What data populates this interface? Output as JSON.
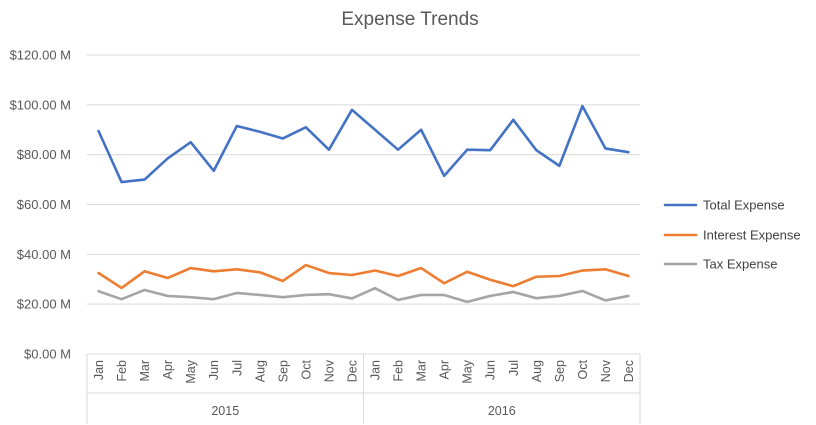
{
  "chart_data": {
    "type": "line",
    "title": "Expense Trends",
    "xlabel": "",
    "ylabel": "",
    "ylim": [
      0,
      120
    ],
    "y_ticks": [
      0,
      20,
      40,
      60,
      80,
      100,
      120
    ],
    "y_tick_labels": [
      "$0.00 M",
      "$20.00 M",
      "$40.00 M",
      "$60.00 M",
      "$80.00 M",
      "$100.00 M",
      "$120.00 M"
    ],
    "grid": "horizontal",
    "legend_position": "right",
    "groups": [
      {
        "label": "2015",
        "categories": [
          "Jan",
          "Feb",
          "Mar",
          "Apr",
          "May",
          "Jun",
          "Jul",
          "Aug",
          "Sep",
          "Oct",
          "Nov",
          "Dec"
        ]
      },
      {
        "label": "2016",
        "categories": [
          "Jan",
          "Feb",
          "Mar",
          "Apr",
          "May",
          "Jun",
          "Jul",
          "Aug",
          "Sep",
          "Oct",
          "Nov",
          "Dec"
        ]
      }
    ],
    "series": [
      {
        "name": "Total Expense",
        "color": "#4472C4",
        "values": [
          89.5,
          69,
          70,
          78.5,
          85,
          73.5,
          91.5,
          89.2,
          86.5,
          91,
          82,
          98,
          90,
          82,
          90,
          71.5,
          82,
          81.8,
          94,
          81.8,
          75.5,
          99.5,
          82.5,
          81
        ]
      },
      {
        "name": "Interest Expense",
        "color": "#ED7D31",
        "values": [
          32.5,
          26.5,
          33.2,
          30.5,
          34.5,
          33.2,
          34,
          32.8,
          29.3,
          35.7,
          32.5,
          31.7,
          33.5,
          31.3,
          34.5,
          28.4,
          33,
          29.8,
          27.2,
          31,
          31.3,
          33.5,
          34,
          31.3
        ]
      },
      {
        "name": "Tax Expense",
        "color": "#A5A5A5",
        "values": [
          25.2,
          22,
          25.7,
          23.3,
          22.8,
          22,
          24.5,
          23.7,
          22.8,
          23.7,
          24,
          22.3,
          26.4,
          21.7,
          23.7,
          23.7,
          20.9,
          23.3,
          24.9,
          22.4,
          23.3,
          25.3,
          21.5,
          23.3
        ]
      }
    ]
  }
}
